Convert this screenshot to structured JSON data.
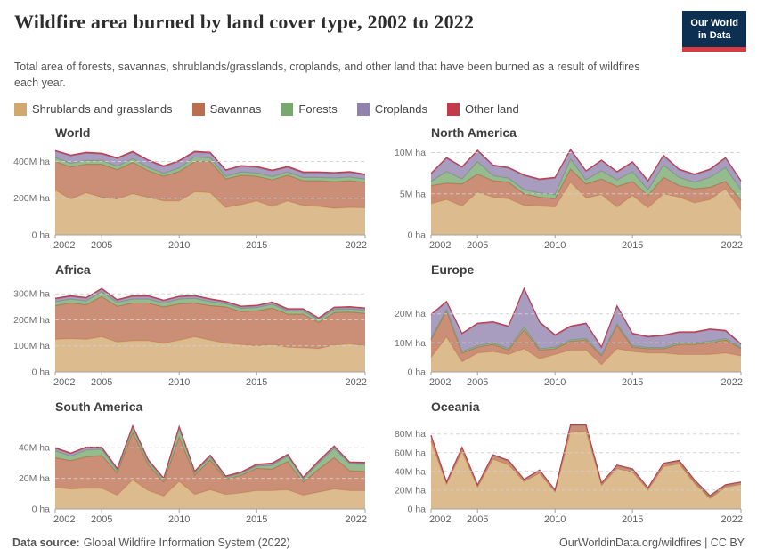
{
  "header": {
    "title": "Wildfire area burned by land cover type, 2002 to 2022",
    "subtitle": "Total area of forests, savannas, shrublands/grasslands, croplands, and other land that have been burned as a result of wildfires each year.",
    "logo": {
      "line1": "Our World",
      "line2": "in Data"
    }
  },
  "legend": {
    "items": [
      {
        "label": "Shrublands and grasslands",
        "color": "#D2A86F"
      },
      {
        "label": "Savannas",
        "color": "#BC6E4F"
      },
      {
        "label": "Forests",
        "color": "#78A86E"
      },
      {
        "label": "Croplands",
        "color": "#9181AD"
      },
      {
        "label": "Other land",
        "color": "#C23B4A"
      }
    ]
  },
  "colors": {
    "grid": "#cfcfcf",
    "axis": "#a0a0a0",
    "tick_text": "#606060",
    "ytick_text": "#6f6f6f",
    "logo_navy": "#0d2f51",
    "logo_red": "#d93a40"
  },
  "footer": {
    "source_label": "Data source:",
    "source_value": "Global Wildfire Information System (2022)",
    "credit": "OurWorldinData.org/wildfires | CC BY"
  },
  "chart_data": [
    {
      "type": "area",
      "title": "World",
      "unit": "M ha",
      "x": [
        2002,
        2003,
        2004,
        2005,
        2006,
        2007,
        2008,
        2009,
        2010,
        2011,
        2012,
        2013,
        2014,
        2015,
        2016,
        2017,
        2018,
        2019,
        2020,
        2021,
        2022
      ],
      "x_ticks": [
        2002,
        2005,
        2010,
        2015,
        2022
      ],
      "ymax": 475,
      "y_ticks": [
        {
          "v": 0,
          "label": "0 ha"
        },
        {
          "v": 200,
          "label": "200M ha"
        },
        {
          "v": 400,
          "label": "400M ha"
        }
      ],
      "series": [
        {
          "name": "Shrublands and grasslands",
          "values": [
            245,
            195,
            230,
            205,
            195,
            225,
            205,
            185,
            185,
            235,
            230,
            150,
            165,
            185,
            155,
            185,
            160,
            155,
            145,
            150,
            148
          ]
        },
        {
          "name": "Savannas",
          "values": [
            155,
            175,
            155,
            180,
            160,
            170,
            145,
            135,
            160,
            165,
            170,
            155,
            160,
            135,
            145,
            140,
            135,
            140,
            145,
            145,
            138
          ]
        },
        {
          "name": "Forests",
          "values": [
            20,
            20,
            20,
            20,
            20,
            20,
            18,
            16,
            20,
            25,
            20,
            15,
            18,
            18,
            18,
            18,
            18,
            18,
            20,
            20,
            18
          ]
        },
        {
          "name": "Croplands",
          "values": [
            35,
            40,
            40,
            35,
            40,
            35,
            35,
            35,
            35,
            25,
            25,
            30,
            30,
            30,
            30,
            25,
            25,
            25,
            25,
            25,
            22
          ]
        },
        {
          "name": "Other land",
          "values": [
            5,
            5,
            5,
            5,
            5,
            5,
            5,
            5,
            5,
            5,
            5,
            5,
            5,
            5,
            5,
            5,
            5,
            5,
            5,
            5,
            5
          ]
        }
      ]
    },
    {
      "type": "area",
      "title": "North America",
      "unit": "M ha",
      "x": [
        2002,
        2003,
        2004,
        2005,
        2006,
        2007,
        2008,
        2009,
        2010,
        2011,
        2012,
        2013,
        2014,
        2015,
        2016,
        2017,
        2018,
        2019,
        2020,
        2021,
        2022
      ],
      "x_ticks": [
        2002,
        2005,
        2010,
        2015,
        2022
      ],
      "ymax": 10.6,
      "y_ticks": [
        {
          "v": 0,
          "label": "0 ha"
        },
        {
          "v": 5,
          "label": "5M ha"
        },
        {
          "v": 10,
          "label": "10M ha"
        }
      ],
      "series": [
        {
          "name": "Shrublands and grasslands",
          "values": [
            3.8,
            4.3,
            3.5,
            5.2,
            4.6,
            4.4,
            3.6,
            3.5,
            3.4,
            6.4,
            4.5,
            4.9,
            3.4,
            4.8,
            3.3,
            5.0,
            4.6,
            3.9,
            4.3,
            5.6,
            3.0
          ]
        },
        {
          "name": "Savannas",
          "values": [
            2.2,
            2.0,
            2.7,
            2.2,
            2.0,
            2.0,
            1.4,
            1.1,
            1.0,
            1.6,
            1.7,
            1.9,
            2.5,
            1.7,
            1.5,
            2.0,
            1.4,
            1.7,
            1.5,
            0.9,
            1.2
          ]
        },
        {
          "name": "Forests",
          "values": [
            0.5,
            1.4,
            0.6,
            1.5,
            0.6,
            0.5,
            0.5,
            0.5,
            0.5,
            1.2,
            0.5,
            1.0,
            0.8,
            1.2,
            0.7,
            1.5,
            1.0,
            0.8,
            1.2,
            1.7,
            1.3
          ]
        },
        {
          "name": "Croplands",
          "values": [
            0.9,
            1.6,
            1.4,
            1.3,
            1.2,
            1.2,
            1.7,
            1.6,
            2.0,
            1.1,
            1.0,
            1.2,
            0.9,
            1.1,
            1.0,
            1.1,
            0.9,
            0.9,
            0.9,
            1.1,
            1.0
          ]
        },
        {
          "name": "Other land",
          "values": [
            0.1,
            0.1,
            0.1,
            0.1,
            0.1,
            0.1,
            0.1,
            0.1,
            0.1,
            0.1,
            0.1,
            0.1,
            0.1,
            0.1,
            0.1,
            0.1,
            0.1,
            0.1,
            0.1,
            0.1,
            0.1
          ]
        }
      ]
    },
    {
      "type": "area",
      "title": "Africa",
      "unit": "M ha",
      "x": [
        2002,
        2003,
        2004,
        2005,
        2006,
        2007,
        2008,
        2009,
        2010,
        2011,
        2012,
        2013,
        2014,
        2015,
        2016,
        2017,
        2018,
        2019,
        2020,
        2021,
        2022
      ],
      "x_ticks": [
        2002,
        2005,
        2010,
        2015,
        2022
      ],
      "ymax": 335,
      "y_ticks": [
        {
          "v": 0,
          "label": "0 ha"
        },
        {
          "v": 100,
          "label": "100M ha"
        },
        {
          "v": 200,
          "label": "200M ha"
        },
        {
          "v": 300,
          "label": "300M ha"
        }
      ],
      "series": [
        {
          "name": "Shrublands and grasslands",
          "values": [
            125,
            128,
            125,
            135,
            115,
            120,
            120,
            110,
            122,
            135,
            122,
            110,
            105,
            100,
            105,
            95,
            93,
            90,
            103,
            108,
            100
          ]
        },
        {
          "name": "Savannas",
          "values": [
            130,
            137,
            133,
            155,
            137,
            145,
            145,
            140,
            140,
            130,
            133,
            140,
            127,
            135,
            140,
            127,
            129,
            100,
            125,
            122,
            125
          ]
        },
        {
          "name": "Forests",
          "values": [
            15,
            15,
            15,
            18,
            15,
            15,
            15,
            15,
            18,
            18,
            15,
            12,
            12,
            12,
            15,
            12,
            12,
            10,
            12,
            12,
            12
          ]
        },
        {
          "name": "Croplands",
          "values": [
            10,
            10,
            10,
            10,
            8,
            10,
            10,
            8,
            8,
            8,
            8,
            6,
            6,
            6,
            6,
            6,
            6,
            5,
            6,
            6,
            6
          ]
        },
        {
          "name": "Other land",
          "values": [
            3,
            3,
            3,
            3,
            3,
            3,
            3,
            3,
            3,
            3,
            3,
            3,
            3,
            3,
            3,
            3,
            3,
            3,
            3,
            3,
            3
          ]
        }
      ]
    },
    {
      "type": "area",
      "title": "Europe",
      "unit": "M ha",
      "x": [
        2002,
        2003,
        2004,
        2005,
        2006,
        2007,
        2008,
        2009,
        2010,
        2011,
        2012,
        2013,
        2014,
        2015,
        2016,
        2017,
        2018,
        2019,
        2020,
        2021,
        2022
      ],
      "x_ticks": [
        2002,
        2005,
        2010,
        2015,
        2022
      ],
      "ymax": 30,
      "y_ticks": [
        {
          "v": 0,
          "label": "0 ha"
        },
        {
          "v": 10,
          "label": "10M ha"
        },
        {
          "v": 20,
          "label": "20M ha"
        }
      ],
      "series": [
        {
          "name": "Shrublands and grasslands",
          "values": [
            5,
            12,
            3.5,
            6.5,
            7,
            6,
            8,
            4.5,
            6,
            7.5,
            7.5,
            2.5,
            8,
            7,
            6.5,
            6.5,
            6,
            6,
            6,
            6.5,
            5.5
          ]
        },
        {
          "name": "Savannas",
          "values": [
            6,
            9,
            3,
            2,
            2.5,
            1.5,
            6.5,
            3,
            2,
            3,
            3.5,
            3,
            8,
            1.5,
            1.5,
            1.5,
            3.5,
            3.5,
            4,
            4.5,
            2.5
          ]
        },
        {
          "name": "Forests",
          "values": [
            0.5,
            0.5,
            0.5,
            0.5,
            0.5,
            0.5,
            1.0,
            0.5,
            0.5,
            0.5,
            0.5,
            0.3,
            0.5,
            0.5,
            0.4,
            0.4,
            0.5,
            0.5,
            0.5,
            0.5,
            0.4
          ]
        },
        {
          "name": "Croplands",
          "values": [
            8,
            2.5,
            6,
            7.5,
            7,
            7.5,
            13,
            9,
            4,
            4.5,
            5,
            2.5,
            6,
            4,
            3.5,
            4,
            3.5,
            3.5,
            4,
            2.5,
            1
          ]
        },
        {
          "name": "Other land",
          "values": [
            0.3,
            0.3,
            0.3,
            0.3,
            0.3,
            0.3,
            0.3,
            0.3,
            0.3,
            0.3,
            0.3,
            0.3,
            0.3,
            0.3,
            0.3,
            0.3,
            0.3,
            0.3,
            0.3,
            0.3,
            0.3
          ]
        }
      ]
    },
    {
      "type": "area",
      "title": "South America",
      "unit": "M ha",
      "x": [
        2002,
        2003,
        2004,
        2005,
        2006,
        2007,
        2008,
        2009,
        2010,
        2011,
        2012,
        2013,
        2014,
        2015,
        2016,
        2017,
        2018,
        2019,
        2020,
        2021,
        2022
      ],
      "x_ticks": [
        2002,
        2005,
        2010,
        2015,
        2022
      ],
      "ymax": 57,
      "y_ticks": [
        {
          "v": 0,
          "label": "0 ha"
        },
        {
          "v": 20,
          "label": "20M ha"
        },
        {
          "v": 40,
          "label": "40M ha"
        }
      ],
      "series": [
        {
          "name": "Shrublands and grasslands",
          "values": [
            14,
            13,
            13.5,
            13.5,
            9,
            19,
            12,
            8.5,
            18,
            9.5,
            12.5,
            9.5,
            10.5,
            12,
            12,
            12.5,
            9,
            11,
            13,
            12,
            12
          ]
        },
        {
          "name": "Savannas",
          "values": [
            19.5,
            18.5,
            20.5,
            21.5,
            14.5,
            31,
            17,
            9,
            29,
            12.5,
            19.5,
            10,
            11.5,
            14.5,
            14,
            18.5,
            8.5,
            15,
            20.5,
            13,
            12.5
          ]
        },
        {
          "name": "Forests",
          "values": [
            4.5,
            3,
            4.5,
            4,
            1.5,
            3,
            2,
            1.5,
            5.5,
            1.5,
            2,
            1,
            1.2,
            1.5,
            2.5,
            3.5,
            2,
            4,
            6,
            4.5,
            4.5
          ]
        },
        {
          "name": "Croplands",
          "values": [
            1.5,
            1.5,
            1.5,
            1,
            1,
            1,
            0.7,
            0.7,
            1,
            0.7,
            0.7,
            0.5,
            0.5,
            0.7,
            1,
            0.7,
            0.7,
            1,
            1.2,
            0.7,
            0.9
          ]
        },
        {
          "name": "Other land",
          "values": [
            0.5,
            0.5,
            0.5,
            0.5,
            0.5,
            0.5,
            0.5,
            0.5,
            0.5,
            0.5,
            0.5,
            0.5,
            0.5,
            0.5,
            0.5,
            0.5,
            0.5,
            0.5,
            0.5,
            0.5,
            0.5
          ]
        }
      ]
    },
    {
      "type": "area",
      "title": "Oceania",
      "unit": "M ha",
      "x": [
        2002,
        2003,
        2004,
        2005,
        2006,
        2007,
        2008,
        2009,
        2010,
        2011,
        2012,
        2013,
        2014,
        2015,
        2016,
        2017,
        2018,
        2019,
        2020,
        2021,
        2022
      ],
      "x_ticks": [
        2002,
        2005,
        2010,
        2015,
        2022
      ],
      "ymax": 93,
      "y_ticks": [
        {
          "v": 0,
          "label": "0 ha"
        },
        {
          "v": 20,
          "label": "20M ha"
        },
        {
          "v": 40,
          "label": "40M ha"
        },
        {
          "v": 60,
          "label": "60M ha"
        },
        {
          "v": 80,
          "label": "80M ha"
        }
      ],
      "series": [
        {
          "name": "Shrublands and grasslands",
          "values": [
            72,
            26,
            61,
            23,
            53,
            47,
            29,
            38,
            18,
            82,
            83,
            25,
            43,
            39,
            20,
            45,
            48,
            27,
            11,
            23,
            26
          ]
        },
        {
          "name": "Savannas",
          "values": [
            6,
            2,
            4,
            2,
            4,
            4,
            2,
            3,
            1.5,
            7,
            6,
            2,
            3,
            3,
            2,
            3,
            3,
            2,
            1.5,
            2,
            2
          ]
        },
        {
          "name": "Forests",
          "values": [
            0.3,
            0.2,
            0.3,
            0.2,
            0.3,
            0.3,
            0.2,
            0.2,
            0.2,
            0.3,
            0.3,
            0.2,
            0.3,
            0.3,
            0.2,
            0.3,
            0.3,
            1.5,
            1.2,
            0.3,
            0.3
          ]
        },
        {
          "name": "Croplands",
          "values": [
            0.3,
            0.2,
            0.3,
            0.2,
            0.3,
            0.3,
            0.2,
            0.2,
            0.2,
            0.3,
            0.3,
            0.2,
            0.3,
            0.3,
            0.2,
            0.3,
            0.3,
            0.3,
            0.3,
            0.3,
            0.3
          ]
        },
        {
          "name": "Other land",
          "values": [
            0.2,
            0.2,
            0.2,
            0.2,
            0.2,
            0.2,
            0.2,
            0.2,
            0.2,
            0.2,
            0.2,
            0.2,
            0.2,
            0.2,
            0.2,
            0.2,
            0.2,
            0.2,
            0.2,
            0.2,
            0.2
          ]
        }
      ]
    }
  ]
}
